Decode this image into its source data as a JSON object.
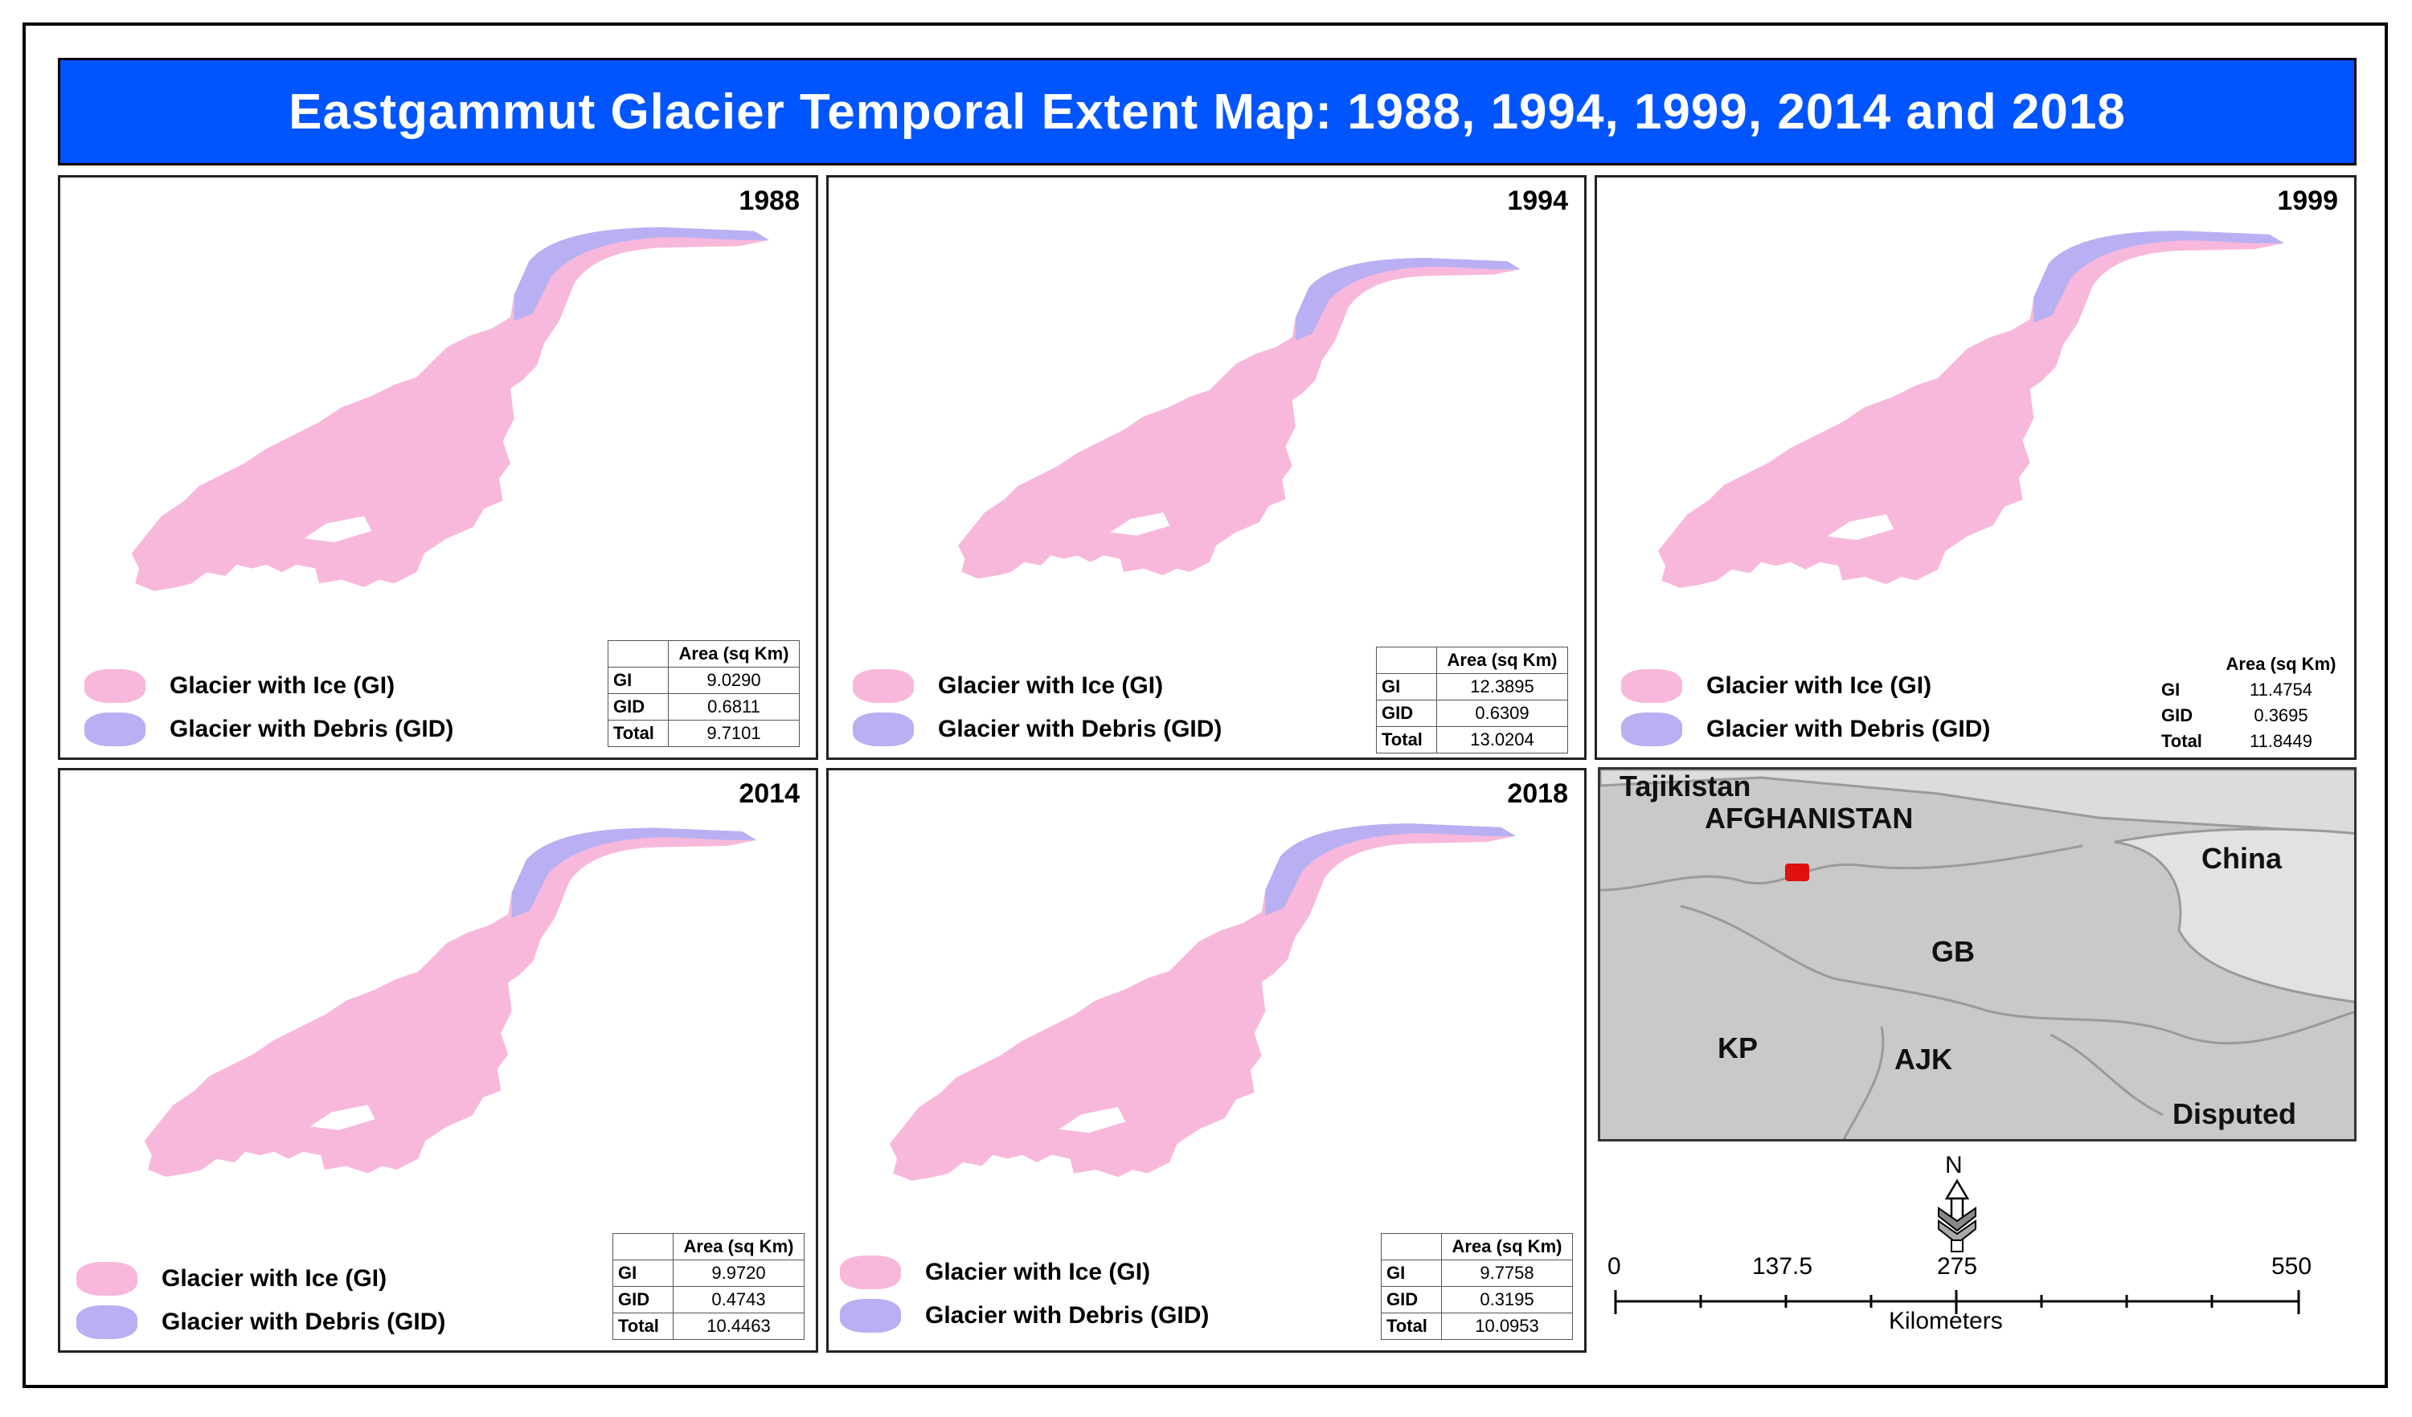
{
  "title": "Eastgammut Glacier Temporal Extent Map: 1988, 1994, 1999, 2014 and 2018",
  "colors": {
    "gi": "#f8b8dc",
    "gid": "#b8b0f2",
    "title_bg": "#0055ff",
    "inset_land": "#c9c9c9",
    "inset_china": "#e2e2e2",
    "site_marker": "#e01010"
  },
  "legend": {
    "gi_label": "Glacier with Ice (GI)",
    "gid_label": "Glacier with Debris (GID)"
  },
  "table_header": "Area (sq Km)",
  "row_labels": {
    "gi": "GI",
    "gid": "GID",
    "total": "Total"
  },
  "panels": [
    {
      "year": "1988",
      "gi": "9.0290",
      "gid": "0.6811",
      "total": "9.7101"
    },
    {
      "year": "1994",
      "gi": "12.3895",
      "gid": "0.6309",
      "total": "13.0204"
    },
    {
      "year": "1999",
      "gi": "11.4754",
      "gid": "0.3695",
      "total": "11.8449"
    },
    {
      "year": "2014",
      "gi": "9.9720",
      "gid": "0.4743",
      "total": "10.4463"
    },
    {
      "year": "2018",
      "gi": "9.7758",
      "gid": "0.3195",
      "total": "10.0953"
    }
  ],
  "inset": {
    "labels": {
      "tajikistan": "Tajikistan",
      "afghanistan": "AFGHANISTAN",
      "china": "China",
      "gb": "GB",
      "kp": "KP",
      "ajk": "AJK",
      "disputed": "Disputed"
    }
  },
  "north_label": "N",
  "scale": {
    "ticks": [
      "0",
      "137.5",
      "275",
      "550"
    ],
    "unit": "Kilometers"
  }
}
